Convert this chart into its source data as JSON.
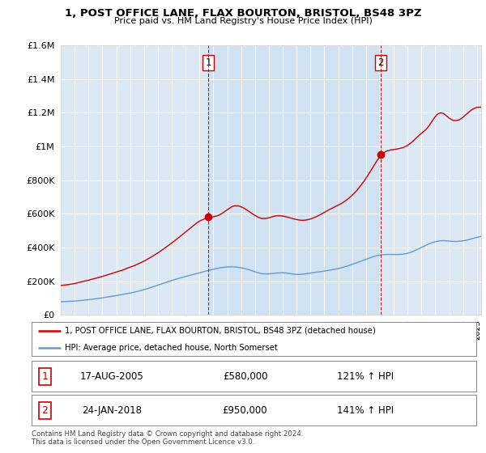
{
  "title": "1, POST OFFICE LANE, FLAX BOURTON, BRISTOL, BS48 3PZ",
  "subtitle": "Price paid vs. HM Land Registry's House Price Index (HPI)",
  "legend_line1": "1, POST OFFICE LANE, FLAX BOURTON, BRISTOL, BS48 3PZ (detached house)",
  "legend_line2": "HPI: Average price, detached house, North Somerset",
  "sale1_label": "1",
  "sale1_date": "17-AUG-2005",
  "sale1_price": "£580,000",
  "sale1_hpi": "121% ↑ HPI",
  "sale1_year": 2005.63,
  "sale1_value": 580000,
  "sale2_label": "2",
  "sale2_date": "24-JAN-2018",
  "sale2_price": "£950,000",
  "sale2_hpi": "141% ↑ HPI",
  "sale2_year": 2018.07,
  "sale2_value": 950000,
  "footnote": "Contains HM Land Registry data © Crown copyright and database right 2024.\nThis data is licensed under the Open Government Licence v3.0.",
  "red_color": "#cc0000",
  "blue_color": "#6699cc",
  "shade_color": "#dce9f5",
  "bg_color": "#dce9f5",
  "ylim": [
    0,
    1600000
  ],
  "xlim_start": 1995,
  "xlim_end": 2025.3,
  "yticks": [
    0,
    200000,
    400000,
    600000,
    800000,
    1000000,
    1200000,
    1400000,
    1600000
  ]
}
